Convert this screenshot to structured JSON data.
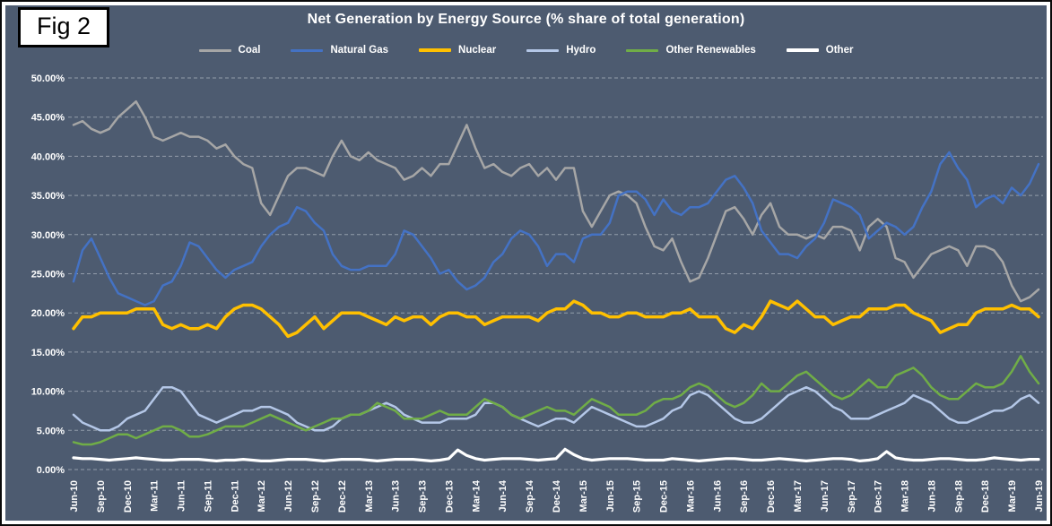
{
  "figure_label": "Fig 2",
  "colors": {
    "panel_bg": "#4d5b70",
    "grid": "#cdd3da",
    "text": "#ffffff",
    "frame_border": "#0a0a0a"
  },
  "chart_data": {
    "type": "line",
    "title": "Net Generation by Energy Source (% share of total generation)",
    "x_start": "Jun-10",
    "x_end": "Jun-19",
    "x_frequency": "monthly",
    "grid": "dashed horizontal gridlines every 5%",
    "legend_position": "top",
    "ylim": [
      0,
      50
    ],
    "y_tick_labels": [
      "0.00%",
      "5.00%",
      "10.00%",
      "15.00%",
      "20.00%",
      "25.00%",
      "30.00%",
      "35.00%",
      "40.00%",
      "45.00%",
      "50.00%"
    ],
    "x_tick_labels": [
      "Jun-10",
      "Sep-10",
      "Dec-10",
      "Mar-11",
      "Jun-11",
      "Sep-11",
      "Dec-11",
      "Mar-12",
      "Jun-12",
      "Sep-12",
      "Dec-12",
      "Mar-13",
      "Jun-13",
      "Sep-13",
      "Dec-13",
      "Mar-14",
      "Jun-14",
      "Sep-14",
      "Dec-14",
      "Mar-15",
      "Jun-15",
      "Sep-15",
      "Dec-15",
      "Mar-16",
      "Jun-16",
      "Sep-16",
      "Dec-16",
      "Mar-17",
      "Jun-17",
      "Sep-17",
      "Dec-17",
      "Mar-18",
      "Jun-18",
      "Sep-18",
      "Dec-18",
      "Mar-19",
      "Jun-19"
    ],
    "x_ticks_every_n_points": 3,
    "series": [
      {
        "name": "Coal",
        "color": "#a6a6a6",
        "values": [
          44,
          44.5,
          43.5,
          43,
          43.5,
          45,
          46,
          47,
          45,
          42.5,
          42,
          42.5,
          43,
          42.5,
          42.5,
          42,
          41,
          41.5,
          40,
          39,
          38.5,
          34,
          32.5,
          35,
          37.5,
          38.5,
          38.5,
          38,
          37.5,
          40,
          42,
          40,
          39.5,
          40.5,
          39.5,
          39,
          38.5,
          37,
          37.5,
          38.5,
          37.5,
          39,
          39,
          41.5,
          44,
          41,
          38.5,
          39,
          38,
          37.5,
          38.5,
          39,
          37.5,
          38.5,
          37,
          38.5,
          38.5,
          33,
          31,
          33,
          35,
          35.5,
          35,
          34,
          31,
          28.5,
          28,
          29.5,
          26.5,
          24,
          24.5,
          27,
          30,
          33,
          33.5,
          32,
          30,
          32.5,
          34,
          31,
          30,
          30,
          29.5,
          30,
          29.5,
          31,
          31,
          30.5,
          28,
          31,
          32,
          31,
          27,
          26.5,
          24.5,
          26,
          27.5,
          28,
          28.5,
          28,
          26,
          28.5,
          28.5,
          28,
          26.5,
          23.5,
          21.5,
          22,
          23
        ]
      },
      {
        "name": "Natural Gas",
        "color": "#4472c4",
        "values": [
          24,
          28,
          29.5,
          27,
          24.5,
          22.5,
          22,
          21.5,
          21,
          21.5,
          23.5,
          24,
          26,
          29,
          28.5,
          27,
          25.5,
          24.5,
          25.5,
          26,
          26.5,
          28.5,
          30,
          31,
          31.5,
          33.5,
          33,
          31.5,
          30.5,
          27.5,
          26,
          25.5,
          25.5,
          26,
          26,
          26,
          27.5,
          30.5,
          30,
          28.5,
          27,
          25,
          25.5,
          24,
          23,
          23.5,
          24.5,
          26.5,
          27.5,
          29.5,
          30.5,
          30,
          28.5,
          26,
          27.5,
          27.5,
          26.5,
          29.5,
          30,
          30,
          31.5,
          35,
          35.5,
          35.5,
          34.5,
          32.5,
          34.5,
          33,
          32.5,
          33.5,
          33.5,
          34,
          35.5,
          37,
          37.5,
          36,
          34,
          30.5,
          29,
          27.5,
          27.5,
          27,
          28.5,
          29.5,
          31.5,
          34.5,
          34,
          33.5,
          32.5,
          29.5,
          30.5,
          31.5,
          31,
          30,
          31,
          33.5,
          35.5,
          39,
          40.5,
          38.5,
          37,
          33.5,
          34.5,
          35,
          34,
          36,
          35,
          36.5,
          39
        ]
      },
      {
        "name": "Nuclear",
        "color": "#ffc000",
        "values": [
          18,
          19.5,
          19.5,
          20,
          20,
          20,
          20,
          20.5,
          20.5,
          20.5,
          18.5,
          18,
          18.5,
          18,
          18,
          18.5,
          18,
          19.5,
          20.5,
          21,
          21,
          20.5,
          19.5,
          18.5,
          17,
          17.5,
          18.5,
          19.5,
          18,
          19,
          20,
          20,
          20,
          19.5,
          19,
          18.5,
          19.5,
          19,
          19.5,
          19.5,
          18.5,
          19.5,
          20,
          20,
          19.5,
          19.5,
          18.5,
          19,
          19.5,
          19.5,
          19.5,
          19.5,
          19,
          20,
          20.5,
          20.5,
          21.5,
          21,
          20,
          20,
          19.5,
          19.5,
          20,
          20,
          19.5,
          19.5,
          19.5,
          20,
          20,
          20.5,
          19.5,
          19.5,
          19.5,
          18,
          17.5,
          18.5,
          18,
          19.5,
          21.5,
          21,
          20.5,
          21.5,
          20.5,
          19.5,
          19.5,
          18.5,
          19,
          19.5,
          19.5,
          20.5,
          20.5,
          20.5,
          21,
          21,
          20,
          19.5,
          19,
          17.5,
          18,
          18.5,
          18.5,
          20,
          20.5,
          20.5,
          20.5,
          21,
          20.5,
          20.5,
          19.5
        ]
      },
      {
        "name": "Hydro",
        "color": "#b4c7e7",
        "values": [
          7,
          6,
          5.5,
          5,
          5,
          5.5,
          6.5,
          7,
          7.5,
          9,
          10.5,
          10.5,
          10,
          8.5,
          7,
          6.5,
          6,
          6.5,
          7,
          7.5,
          7.5,
          8,
          8,
          7.5,
          7,
          6,
          5.5,
          5,
          5,
          5.5,
          6.5,
          7,
          7,
          7.5,
          8,
          8.5,
          8,
          7,
          6.5,
          6,
          6,
          6,
          6.5,
          6.5,
          6.5,
          7,
          8.5,
          8.5,
          8,
          7,
          6.5,
          6,
          5.5,
          6,
          6.5,
          6.5,
          6,
          7,
          8,
          7.5,
          7,
          6.5,
          6,
          5.5,
          5.5,
          6,
          6.5,
          7.5,
          8,
          9.5,
          10,
          9.5,
          8.5,
          7.5,
          6.5,
          6,
          6,
          6.5,
          7.5,
          8.5,
          9.5,
          10,
          10.5,
          10,
          9,
          8,
          7.5,
          6.5,
          6.5,
          6.5,
          7,
          7.5,
          8,
          8.5,
          9.5,
          9,
          8.5,
          7.5,
          6.5,
          6,
          6,
          6.5,
          7,
          7.5,
          7.5,
          8,
          9,
          9.5,
          8.5
        ]
      },
      {
        "name": "Other Renewables",
        "color": "#70ad47",
        "values": [
          3.5,
          3.2,
          3.2,
          3.5,
          4,
          4.5,
          4.5,
          4,
          4.5,
          5,
          5.5,
          5.5,
          5,
          4.2,
          4.2,
          4.5,
          5,
          5.5,
          5.5,
          5.5,
          6,
          6.5,
          7,
          6.5,
          6,
          5.5,
          5,
          5.5,
          6,
          6.5,
          6.5,
          7,
          7,
          7.5,
          8.5,
          8,
          7.5,
          6.5,
          6.5,
          6.5,
          7,
          7.5,
          7,
          7,
          7,
          8,
          9,
          8.5,
          8,
          7,
          6.5,
          7,
          7.5,
          8,
          7.5,
          7.5,
          7,
          8,
          9,
          8.5,
          8,
          7,
          7,
          7,
          7.5,
          8.5,
          9,
          9,
          9.5,
          10.5,
          11,
          10.5,
          9.5,
          8.5,
          8,
          8.5,
          9.5,
          11,
          10,
          10,
          11,
          12,
          12.5,
          11.5,
          10.5,
          9.5,
          9,
          9.5,
          10.5,
          11.5,
          10.5,
          10.5,
          12,
          12.5,
          13,
          12,
          10.5,
          9.5,
          9,
          9,
          10,
          11,
          10.5,
          10.5,
          11,
          12.5,
          14.5,
          12.5,
          11
        ]
      },
      {
        "name": "Other",
        "color": "#ffffff",
        "values": [
          1.5,
          1.4,
          1.4,
          1.3,
          1.2,
          1.3,
          1.4,
          1.5,
          1.4,
          1.3,
          1.2,
          1.2,
          1.3,
          1.3,
          1.3,
          1.2,
          1.1,
          1.2,
          1.2,
          1.3,
          1.2,
          1.1,
          1.1,
          1.2,
          1.3,
          1.3,
          1.3,
          1.2,
          1.1,
          1.2,
          1.3,
          1.3,
          1.3,
          1.2,
          1.1,
          1.2,
          1.3,
          1.3,
          1.3,
          1.2,
          1.1,
          1.2,
          1.4,
          2.5,
          1.8,
          1.4,
          1.2,
          1.3,
          1.4,
          1.4,
          1.4,
          1.3,
          1.2,
          1.3,
          1.4,
          2.6,
          1.9,
          1.4,
          1.2,
          1.3,
          1.4,
          1.4,
          1.4,
          1.3,
          1.2,
          1.2,
          1.2,
          1.4,
          1.3,
          1.2,
          1.1,
          1.2,
          1.3,
          1.4,
          1.4,
          1.3,
          1.2,
          1.2,
          1.3,
          1.4,
          1.3,
          1.2,
          1.1,
          1.2,
          1.3,
          1.4,
          1.4,
          1.3,
          1.1,
          1.2,
          1.4,
          2.3,
          1.5,
          1.3,
          1.2,
          1.2,
          1.3,
          1.4,
          1.4,
          1.3,
          1.2,
          1.2,
          1.3,
          1.5,
          1.4,
          1.3,
          1.2,
          1.3,
          1.3
        ]
      }
    ]
  }
}
